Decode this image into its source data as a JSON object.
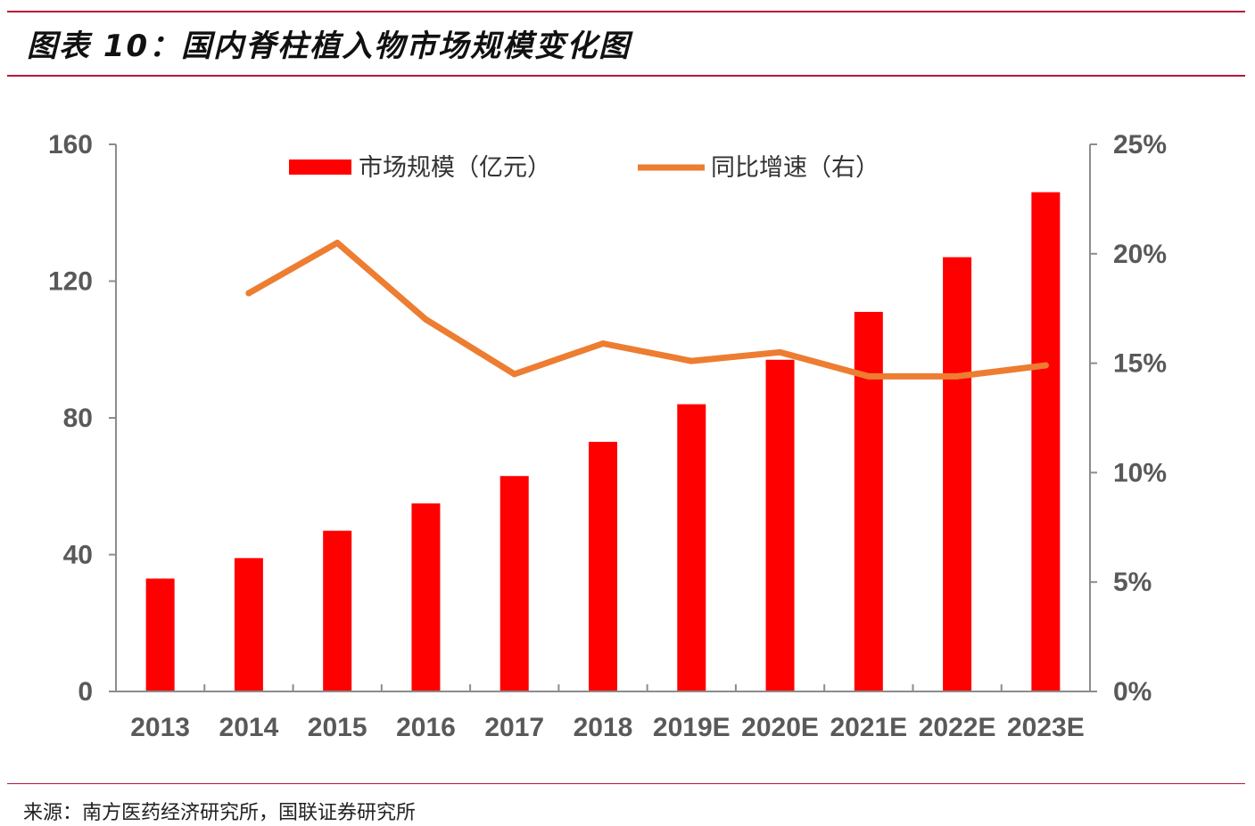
{
  "header": {
    "title": "图表 10：国内脊柱植入物市场规模变化图"
  },
  "footer": {
    "source": "来源：南方医药经济研究所，国联证券研究所"
  },
  "colors": {
    "bar": "#ff0000",
    "line": "#ed7d31",
    "rule": "#b8163a",
    "axis_text": "#595959"
  },
  "chart_data": {
    "type": "bar",
    "categories": [
      "2013",
      "2014",
      "2015",
      "2016",
      "2017",
      "2018",
      "2019E",
      "2020E",
      "2021E",
      "2022E",
      "2023E"
    ],
    "series": [
      {
        "name": "市场规模（亿元）",
        "type": "bar",
        "axis": "left",
        "values": [
          33,
          39,
          47,
          55,
          63,
          73,
          84,
          97,
          111,
          127,
          146
        ]
      },
      {
        "name": "同比增速（右）",
        "type": "line",
        "axis": "right",
        "values": [
          null,
          18.2,
          20.5,
          17.0,
          14.5,
          15.9,
          15.1,
          15.5,
          14.4,
          14.4,
          14.9
        ]
      }
    ],
    "left_axis": {
      "ylim": [
        0,
        160
      ],
      "ticks": [
        0,
        40,
        80,
        120,
        160
      ],
      "tick_labels": [
        "0",
        "40",
        "80",
        "120",
        "160"
      ]
    },
    "right_axis": {
      "ylim": [
        0,
        25
      ],
      "ticks": [
        0,
        5,
        10,
        15,
        20,
        25
      ],
      "tick_labels": [
        "0%",
        "5%",
        "10%",
        "15%",
        "20%",
        "25%"
      ]
    },
    "legend": {
      "position": "top-center"
    },
    "grid": false
  }
}
